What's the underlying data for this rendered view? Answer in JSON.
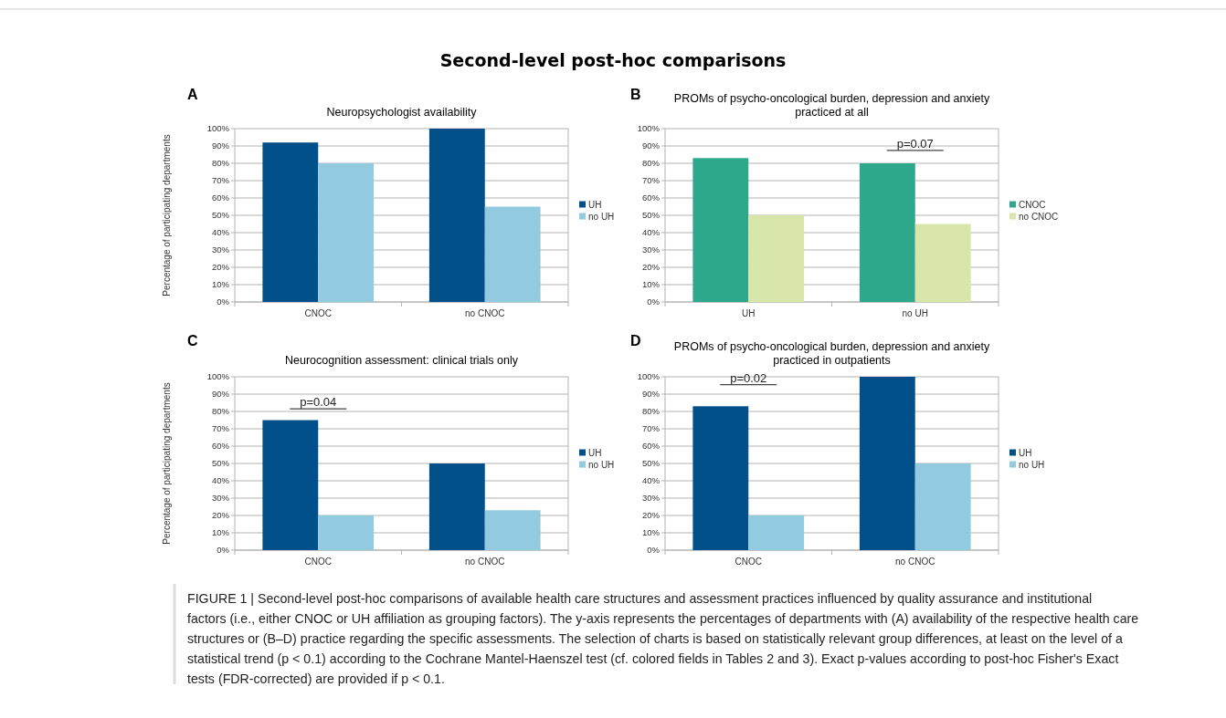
{
  "chart_data": [
    {
      "type": "bar",
      "title": "Neuropsychologist availability",
      "ylabel": "Percentage of participating departments",
      "categories": [
        "CNOC",
        "no CNOC"
      ],
      "series": [
        {
          "name": "UH",
          "color": "#02508a",
          "values": [
            92,
            100
          ]
        },
        {
          "name": "no UH",
          "color": "#92cadf",
          "values": [
            80,
            55
          ]
        }
      ],
      "ylim": [
        0,
        100
      ],
      "yticks": [
        {
          "value": 0,
          "label": "0%"
        },
        {
          "value": 10,
          "label": "10%"
        },
        {
          "value": 20,
          "label": "20%"
        },
        {
          "value": 30,
          "label": "30%"
        },
        {
          "value": 40,
          "label": "40%"
        },
        {
          "value": 50,
          "label": "50%"
        },
        {
          "value": 60,
          "label": "60%"
        },
        {
          "value": 70,
          "label": "70%"
        },
        {
          "value": 80,
          "label": "80%"
        },
        {
          "value": 90,
          "label": "90%"
        },
        {
          "value": 100,
          "label": "100%"
        }
      ],
      "grid": "y",
      "legend": "right",
      "annotations": [
        "A",
        "Second-level post-hoc comparisons",
        "FIGURE 1 | Second-level post-hoc comparisons of available health care structures and assessment practices influenced by quality assurance and institutional",
        "factors (i.e., either CNOC or UH affiliation as grouping factors). The y-axis represents the percentages of departments with (A) availability of the respective health care",
        "structures or (B–D) practice regarding the specific assessments. The selection of charts is based on statistically relevant group differences, at least on the level of a",
        "statistical trend (p < 0.1) according to the Cochrane Mantel-Haenszel test (cf. colored fields in Tables 2 and 3). Exact p-values according to post-hoc Fisher's Exact",
        "tests (FDR-corrected) are provided if p < 0.1."
      ]
    },
    {
      "type": "bar",
      "title": "PROMs of psycho-oncological burden, depression and anxiety practiced at all",
      "categories": [
        "UH",
        "no UH"
      ],
      "series": [
        {
          "name": "CNOC",
          "color": "#2ea88a",
          "values": [
            83,
            80
          ]
        },
        {
          "name": "no CNOC",
          "color": "#d8e6a9",
          "values": [
            50,
            45
          ]
        }
      ],
      "ylim": [
        0,
        100
      ],
      "yticks": [
        {
          "value": 0,
          "label": "0%"
        },
        {
          "value": 10,
          "label": "10%"
        },
        {
          "value": 20,
          "label": "20%"
        },
        {
          "value": 30,
          "label": "30%"
        },
        {
          "value": 40,
          "label": "40%"
        },
        {
          "value": 50,
          "label": "50%"
        },
        {
          "value": 60,
          "label": "60%"
        },
        {
          "value": 70,
          "label": "70%"
        },
        {
          "value": 80,
          "label": "80%"
        },
        {
          "value": 90,
          "label": "90%"
        },
        {
          "value": 100,
          "label": "100%"
        }
      ],
      "grid": "y",
      "legend": "right",
      "annotations": [
        "B",
        "p=0.07"
      ]
    },
    {
      "type": "bar",
      "title": "Neurocognition assessment: clinical trials only",
      "ylabel": "Percentage of participating departments",
      "categories": [
        "CNOC",
        "no CNOC"
      ],
      "series": [
        {
          "name": "UH",
          "color": "#02508a",
          "values": [
            75,
            50
          ]
        },
        {
          "name": "no UH",
          "color": "#92cadf",
          "values": [
            20,
            23
          ]
        }
      ],
      "ylim": [
        0,
        100
      ],
      "yticks": [
        {
          "value": 0,
          "label": "0%"
        },
        {
          "value": 10,
          "label": "10%"
        },
        {
          "value": 20,
          "label": "20%"
        },
        {
          "value": 30,
          "label": "30%"
        },
        {
          "value": 40,
          "label": "40%"
        },
        {
          "value": 50,
          "label": "50%"
        },
        {
          "value": 60,
          "label": "60%"
        },
        {
          "value": 70,
          "label": "70%"
        },
        {
          "value": 80,
          "label": "80%"
        },
        {
          "value": 90,
          "label": "90%"
        },
        {
          "value": 100,
          "label": "100%"
        }
      ],
      "grid": "y",
      "legend": "right",
      "annotations": [
        "C",
        "p=0.04"
      ]
    },
    {
      "type": "bar",
      "title": "PROMs of psycho-oncological burden, depression and anxiety practiced in outpatients",
      "categories": [
        "CNOC",
        "no CNOC"
      ],
      "series": [
        {
          "name": "UH",
          "color": "#02508a",
          "values": [
            83,
            100
          ]
        },
        {
          "name": "no UH",
          "color": "#92cadf",
          "values": [
            20,
            50
          ]
        }
      ],
      "ylim": [
        0,
        100
      ],
      "yticks": [
        {
          "value": 0,
          "label": "0%"
        },
        {
          "value": 10,
          "label": "10%"
        },
        {
          "value": 20,
          "label": "20%"
        },
        {
          "value": 30,
          "label": "30%"
        },
        {
          "value": 40,
          "label": "40%"
        },
        {
          "value": 50,
          "label": "50%"
        },
        {
          "value": 60,
          "label": "60%"
        },
        {
          "value": 70,
          "label": "70%"
        },
        {
          "value": 80,
          "label": "80%"
        },
        {
          "value": 90,
          "label": "90%"
        },
        {
          "value": 100,
          "label": "100%"
        }
      ],
      "grid": "y",
      "legend": "right",
      "annotations": [
        "D",
        "p=0.02"
      ]
    }
  ]
}
